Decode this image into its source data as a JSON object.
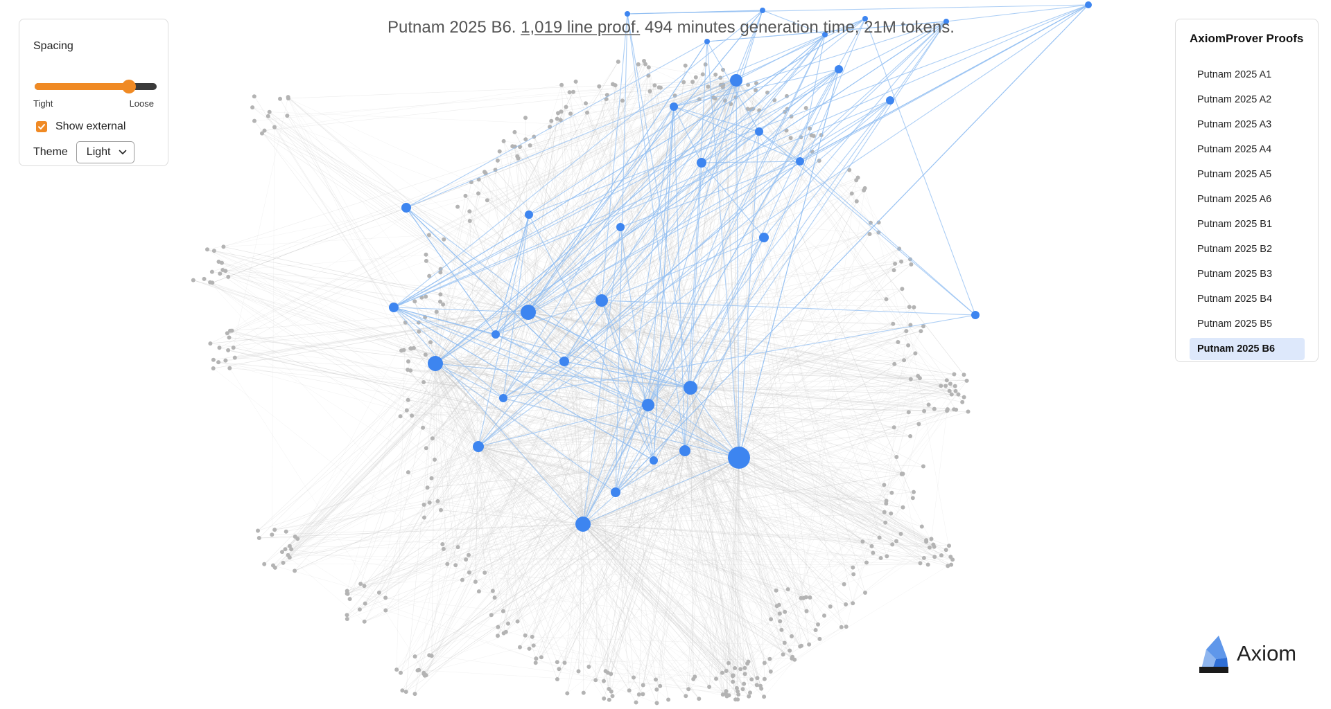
{
  "headline": {
    "problem": "Putnam 2025 B6.",
    "lines": "1,019 line proof.",
    "stats": "494 minutes generation time, 21M tokens."
  },
  "controls": {
    "spacing_label": "Spacing",
    "spacing_min_label": "Tight",
    "spacing_max_label": "Loose",
    "spacing_value": 0.8,
    "show_external_label": "Show external",
    "show_external_checked": true,
    "theme_label": "Theme",
    "theme_value": "Light"
  },
  "proofs": {
    "title": "AxiomProver Proofs",
    "items": [
      "Putnam 2025 A1",
      "Putnam 2025 A2",
      "Putnam 2025 A3",
      "Putnam 2025 A4",
      "Putnam 2025 A5",
      "Putnam 2025 A6",
      "Putnam 2025 B1",
      "Putnam 2025 B2",
      "Putnam 2025 B3",
      "Putnam 2025 B4",
      "Putnam 2025 B5",
      "Putnam 2025 B6"
    ],
    "selected": "Putnam 2025 B6"
  },
  "brand": {
    "name": "Axiom"
  },
  "colors": {
    "accent": "#f08a24",
    "node_internal": "#3d85f0",
    "node_external": "#b3b3b3",
    "edge_internal": "#90bdf2",
    "edge_external": "#c8c8c8",
    "selected_bg": "#dde8fb"
  },
  "graph": {
    "internal_node_count": 34
  }
}
